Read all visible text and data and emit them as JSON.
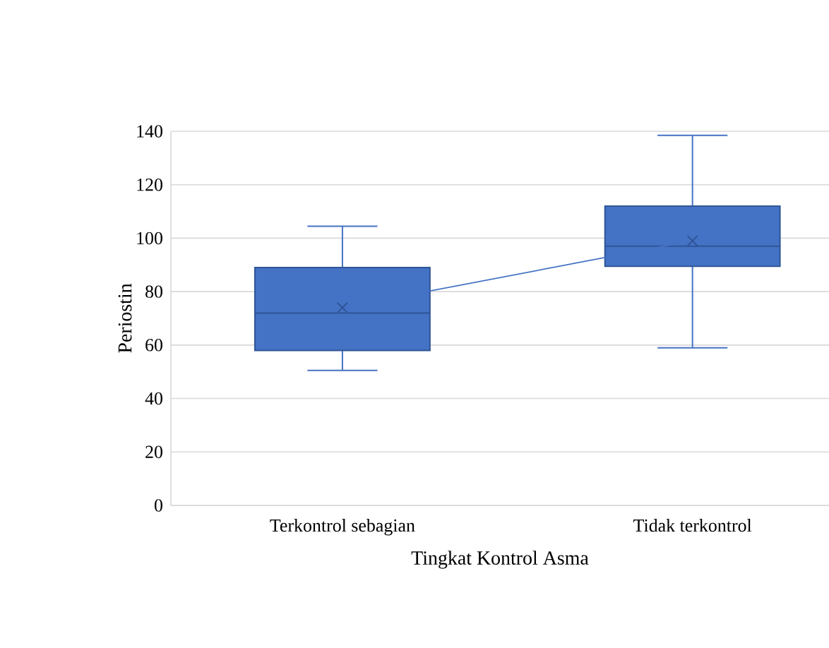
{
  "chart_data": {
    "type": "box",
    "xlabel": "Tingkat Kontrol Asma",
    "ylabel": "Periostin",
    "categories": [
      "Terkontrol sebagian",
      "Tidak terkontrol"
    ],
    "boxes": [
      {
        "low": 50.5,
        "q1": 58,
        "median": 72,
        "q3": 89,
        "high": 104.5,
        "mean": 74
      },
      {
        "low": 59,
        "q1": 89.5,
        "median": 97,
        "q3": 112,
        "high": 138.5,
        "mean": 99
      }
    ],
    "series": [
      {
        "type": "line",
        "x": [
          "Terkontrol sebagian",
          "Tidak terkontrol"
        ],
        "values": [
          74,
          99
        ],
        "color": "#4472c4",
        "marker": "none"
      }
    ],
    "color": "#4472c4",
    "ylim": [
      0,
      140
    ],
    "yticks": [
      0,
      20,
      40,
      60,
      80,
      100,
      120,
      140
    ],
    "grid": "y"
  }
}
